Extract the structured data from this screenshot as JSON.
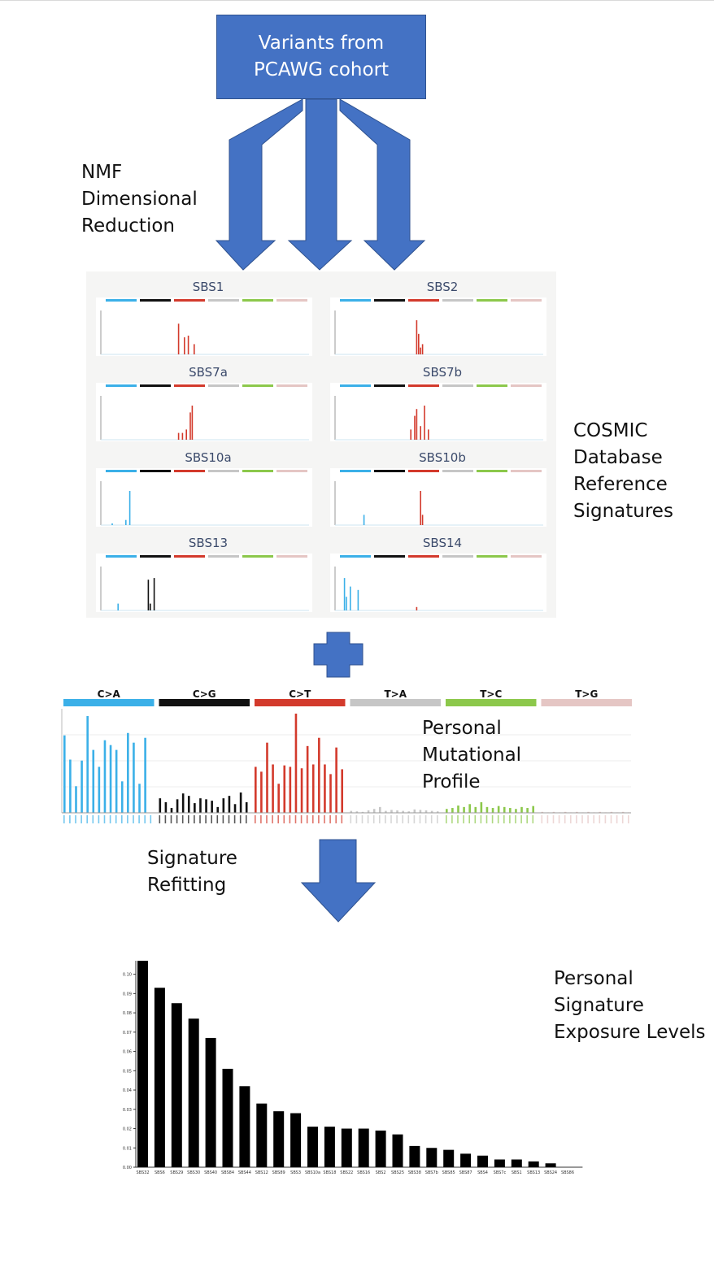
{
  "top_box": {
    "lines": [
      "Variants from",
      "PCAWG cohort"
    ]
  },
  "nmf_label": [
    "NMF",
    "Dimensional",
    "Reduction"
  ],
  "cosmic_label": [
    "COSMIC",
    "Database",
    "Reference",
    "Signatures"
  ],
  "signature_titles": [
    "SBS1",
    "SBS2",
    "SBS7a",
    "SBS7b",
    "SBS10a",
    "SBS10b",
    "SBS13",
    "SBS14"
  ],
  "profile_label": [
    "Personal",
    "Mutational",
    "Profile"
  ],
  "refit_label": [
    "Signature",
    "Refitting"
  ],
  "exposure_label": [
    "Personal",
    "Signature",
    "Exposure Levels"
  ],
  "colors": {
    "arrow": "#4472c4",
    "C>A": "#3bb0e8",
    "C>G": "#111111",
    "C>T": "#d33a2c",
    "T>A": "#c6c6c6",
    "T>C": "#8cc84b",
    "T>G": "#e5c6c4"
  },
  "mutational_profile": {
    "channels": [
      "C>A",
      "C>G",
      "C>T",
      "T>A",
      "T>C",
      "T>G"
    ],
    "values": [
      [
        1.6,
        1.1,
        0.55,
        1.08,
        2.0,
        1.3,
        0.95,
        1.5,
        1.4,
        1.3,
        0.65,
        1.65,
        1.45,
        0.6,
        1.55,
        0
      ],
      [
        0.3,
        0.22,
        0.1,
        0.28,
        0.4,
        0.35,
        0.2,
        0.3,
        0.28,
        0.25,
        0.12,
        0.3,
        0.35,
        0.18,
        0.42,
        0.22
      ],
      [
        0.95,
        0.85,
        1.45,
        1.0,
        0.6,
        0.98,
        0.95,
        2.05,
        0.92,
        1.38,
        1.0,
        1.55,
        1.0,
        0.8,
        1.35,
        0.9
      ],
      [
        0.04,
        0.03,
        0.02,
        0.05,
        0.08,
        0.12,
        0.04,
        0.06,
        0.05,
        0.04,
        0.03,
        0.07,
        0.06,
        0.05,
        0.04,
        0.03
      ],
      [
        0.08,
        0.1,
        0.15,
        0.12,
        0.18,
        0.12,
        0.22,
        0.12,
        0.1,
        0.14,
        0.12,
        0.1,
        0.08,
        0.12,
        0.1,
        0.14
      ],
      [
        0.02,
        0.01,
        0.02,
        0.01,
        0.02,
        0.01,
        0.02,
        0.01,
        0.02,
        0.01,
        0.02,
        0.01,
        0.02,
        0.01,
        0.02,
        0.01
      ]
    ]
  },
  "chart_data": {
    "type": "bar",
    "title": "",
    "xlabel": "",
    "ylabel": "",
    "ylim": [
      0,
      0.107
    ],
    "yticks": [
      "0.00",
      "0.01",
      "0.02",
      "0.03",
      "0.04",
      "0.05",
      "0.06",
      "0.07",
      "0.08",
      "0.09",
      "0.10"
    ],
    "categories": [
      "SBS32",
      "SBS6",
      "SBS29",
      "SBS30",
      "SBS40",
      "SBS84",
      "SBS44",
      "SBS12",
      "SBS89",
      "SBS3",
      "SBS10a",
      "SBS18",
      "SBS22",
      "SBS16",
      "SBS2",
      "SBS25",
      "SBS38",
      "SBS7b",
      "SBS85",
      "SBS87",
      "SBS4",
      "SBS7c",
      "SBS1",
      "SBS13",
      "SBS24",
      "SBS86"
    ],
    "values": [
      0.107,
      0.093,
      0.085,
      0.077,
      0.067,
      0.051,
      0.042,
      0.033,
      0.029,
      0.028,
      0.021,
      0.021,
      0.02,
      0.02,
      0.019,
      0.017,
      0.011,
      0.01,
      0.009,
      0.007,
      0.006,
      0.004,
      0.004,
      0.003,
      0.002,
      0.0
    ]
  }
}
